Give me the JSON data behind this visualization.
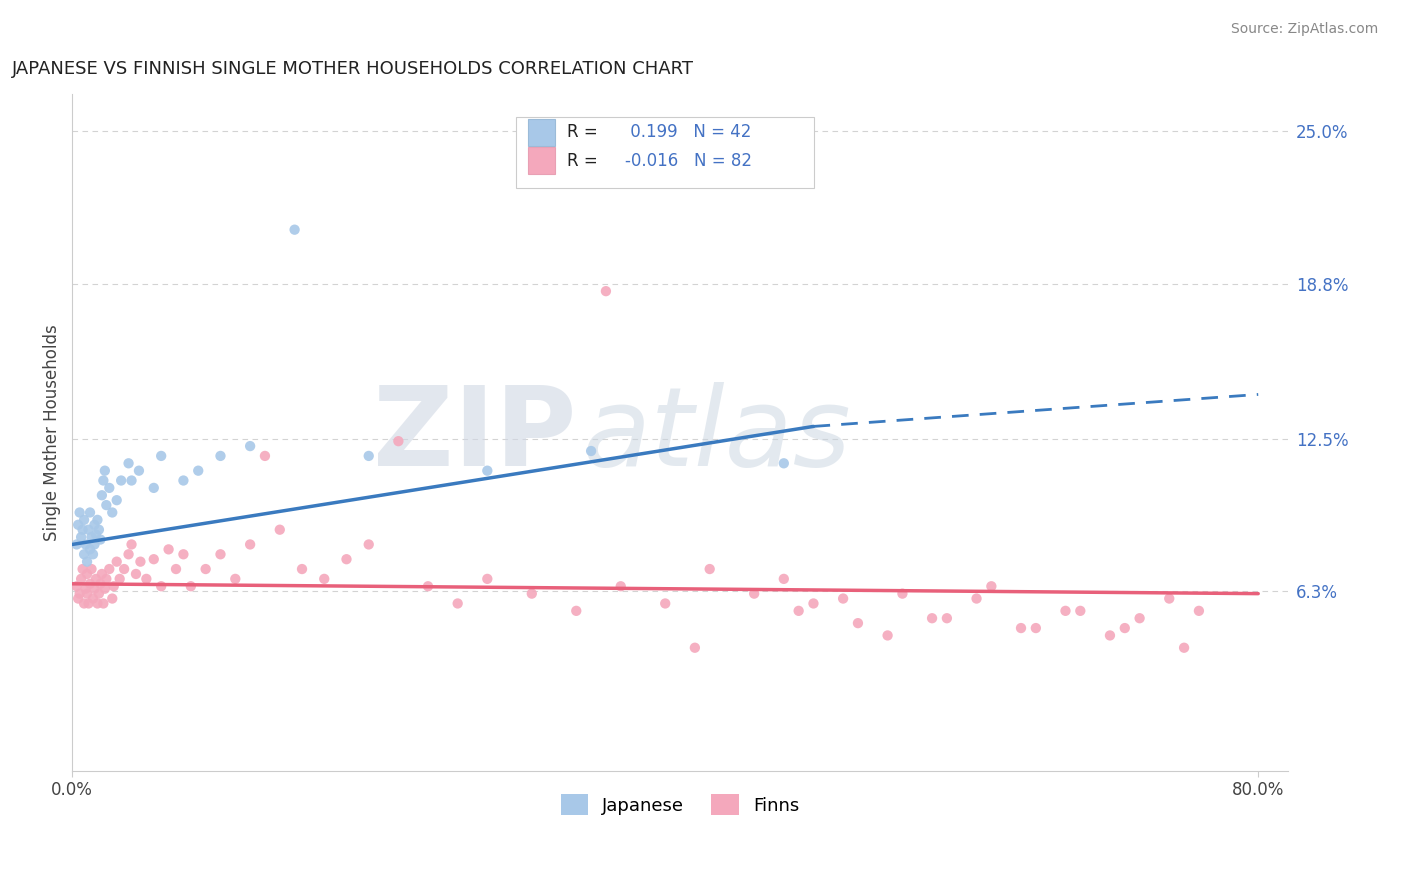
{
  "title": "JAPANESE VS FINNISH SINGLE MOTHER HOUSEHOLDS CORRELATION CHART",
  "source": "Source: ZipAtlas.com",
  "ylabel": "Single Mother Households",
  "xlim": [
    0.0,
    0.82
  ],
  "ylim": [
    -0.01,
    0.265
  ],
  "x_ticks": [
    0.0,
    0.8
  ],
  "x_tick_labels": [
    "0.0%",
    "80.0%"
  ],
  "y_ticks_right": [
    0.063,
    0.125,
    0.188,
    0.25
  ],
  "y_tick_labels_right": [
    "6.3%",
    "12.5%",
    "18.8%",
    "25.0%"
  ],
  "legend_r_japanese": "0.199",
  "legend_n_japanese": "42",
  "legend_r_finns": "-0.016",
  "legend_n_finns": "82",
  "color_japanese": "#a8c8e8",
  "color_finns": "#f4a8bc",
  "color_japanese_line": "#3a7abf",
  "color_finns_line": "#e8607a",
  "watermark_zip": "ZIP",
  "watermark_atlas": "atlas",
  "japanese_points_x": [
    0.003,
    0.004,
    0.005,
    0.006,
    0.007,
    0.008,
    0.008,
    0.009,
    0.01,
    0.011,
    0.012,
    0.012,
    0.013,
    0.014,
    0.015,
    0.015,
    0.016,
    0.017,
    0.018,
    0.019,
    0.02,
    0.021,
    0.022,
    0.023,
    0.025,
    0.027,
    0.03,
    0.033,
    0.038,
    0.04,
    0.045,
    0.055,
    0.06,
    0.075,
    0.085,
    0.1,
    0.12,
    0.15,
    0.2,
    0.28,
    0.35,
    0.48
  ],
  "japanese_points_y": [
    0.082,
    0.09,
    0.095,
    0.085,
    0.088,
    0.092,
    0.078,
    0.082,
    0.075,
    0.088,
    0.095,
    0.08,
    0.085,
    0.078,
    0.09,
    0.082,
    0.086,
    0.092,
    0.088,
    0.084,
    0.102,
    0.108,
    0.112,
    0.098,
    0.105,
    0.095,
    0.1,
    0.108,
    0.115,
    0.108,
    0.112,
    0.105,
    0.118,
    0.108,
    0.112,
    0.118,
    0.122,
    0.21,
    0.118,
    0.112,
    0.12,
    0.115
  ],
  "finns_points_x": [
    0.003,
    0.004,
    0.005,
    0.006,
    0.007,
    0.008,
    0.009,
    0.01,
    0.01,
    0.011,
    0.012,
    0.013,
    0.014,
    0.015,
    0.016,
    0.017,
    0.018,
    0.019,
    0.02,
    0.021,
    0.022,
    0.023,
    0.025,
    0.027,
    0.028,
    0.03,
    0.032,
    0.035,
    0.038,
    0.04,
    0.043,
    0.046,
    0.05,
    0.055,
    0.06,
    0.065,
    0.07,
    0.075,
    0.08,
    0.09,
    0.1,
    0.11,
    0.12,
    0.13,
    0.14,
    0.155,
    0.17,
    0.185,
    0.2,
    0.22,
    0.24,
    0.26,
    0.28,
    0.31,
    0.34,
    0.37,
    0.4,
    0.43,
    0.46,
    0.49,
    0.52,
    0.55,
    0.58,
    0.61,
    0.64,
    0.67,
    0.7,
    0.72,
    0.74,
    0.71,
    0.75,
    0.76,
    0.48,
    0.5,
    0.53,
    0.56,
    0.59,
    0.62,
    0.65,
    0.68,
    0.36,
    0.42
  ],
  "finns_points_y": [
    0.065,
    0.06,
    0.062,
    0.068,
    0.072,
    0.058,
    0.064,
    0.07,
    0.062,
    0.058,
    0.066,
    0.072,
    0.06,
    0.064,
    0.068,
    0.058,
    0.062,
    0.066,
    0.07,
    0.058,
    0.064,
    0.068,
    0.072,
    0.06,
    0.065,
    0.075,
    0.068,
    0.072,
    0.078,
    0.082,
    0.07,
    0.075,
    0.068,
    0.076,
    0.065,
    0.08,
    0.072,
    0.078,
    0.065,
    0.072,
    0.078,
    0.068,
    0.082,
    0.118,
    0.088,
    0.072,
    0.068,
    0.076,
    0.082,
    0.124,
    0.065,
    0.058,
    0.068,
    0.062,
    0.055,
    0.065,
    0.058,
    0.072,
    0.062,
    0.055,
    0.06,
    0.045,
    0.052,
    0.06,
    0.048,
    0.055,
    0.045,
    0.052,
    0.06,
    0.048,
    0.04,
    0.055,
    0.068,
    0.058,
    0.05,
    0.062,
    0.052,
    0.065,
    0.048,
    0.055,
    0.185,
    0.04
  ],
  "jap_trend_x0": 0.0,
  "jap_trend_y0": 0.082,
  "jap_trend_x1": 0.5,
  "jap_trend_y1": 0.13,
  "jap_trend_dash_x1": 0.8,
  "jap_trend_dash_y1": 0.143,
  "fin_trend_x0": 0.0,
  "fin_trend_y0": 0.066,
  "fin_trend_x1": 0.8,
  "fin_trend_y1": 0.062
}
